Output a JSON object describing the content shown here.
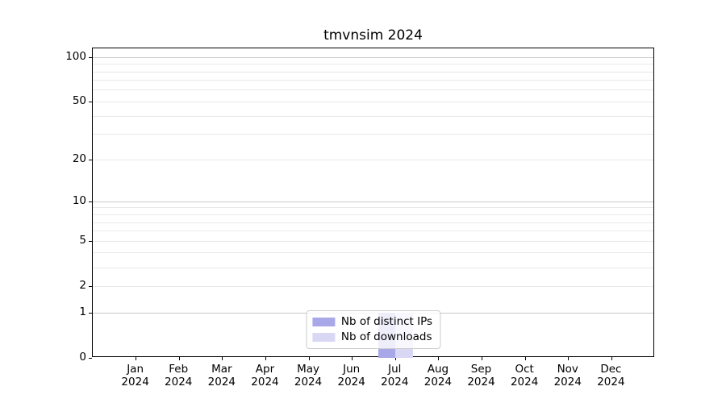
{
  "chart_data": {
    "type": "bar",
    "title": "tmvnsim 2024",
    "categories": [
      "Jan",
      "Feb",
      "Mar",
      "Apr",
      "May",
      "Jun",
      "Jul",
      "Aug",
      "Sep",
      "Oct",
      "Nov",
      "Dec"
    ],
    "year": "2024",
    "series": [
      {
        "name": "Nb of distinct IPs",
        "slug": "distinct-ips",
        "color": "#a8a8e8",
        "values": [
          0,
          0,
          0,
          0,
          0,
          0,
          1,
          0,
          0,
          0,
          0,
          0
        ]
      },
      {
        "name": "Nb of downloads",
        "slug": "downloads",
        "color": "#d8d8f5",
        "values": [
          0,
          0,
          0,
          0,
          0,
          0,
          1,
          0,
          0,
          0,
          0,
          0
        ]
      }
    ],
    "xlabel": "",
    "ylabel": "",
    "yscale": "log1p",
    "ylim": [
      0,
      115
    ],
    "yticks": [
      0,
      1,
      2,
      5,
      10,
      20,
      50,
      100
    ],
    "gridlines": {
      "major": [
        1,
        10,
        100
      ],
      "minor": [
        2,
        3,
        4,
        5,
        6,
        7,
        8,
        9,
        20,
        30,
        40,
        50,
        60,
        70,
        80,
        90
      ]
    },
    "legend_position": "lower center",
    "colors": {
      "major_grid": "#c9c9c9",
      "minor_grid": "#e9e9e9",
      "axis": "#000000",
      "text": "#000000",
      "legend_border": "#cccccc"
    }
  }
}
